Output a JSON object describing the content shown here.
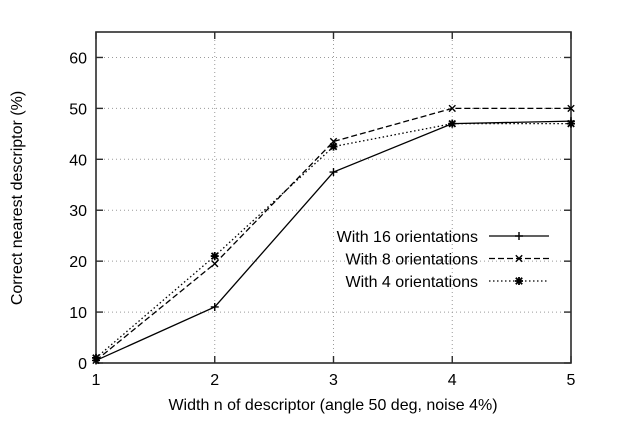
{
  "chart_data": {
    "type": "line",
    "title": "",
    "xlabel": "Width n of descriptor (angle 50 deg, noise 4%)",
    "ylabel": "Correct nearest descriptor (%)",
    "x": [
      1,
      2,
      3,
      4,
      5
    ],
    "xlim": [
      1,
      5
    ],
    "ylim": [
      0,
      65
    ],
    "xticks": [
      1,
      2,
      3,
      4,
      5
    ],
    "yticks": [
      0,
      10,
      20,
      30,
      40,
      50,
      60
    ],
    "grid": true,
    "legend_position": "inside-right-middle",
    "series": [
      {
        "name": "With 16 orientations",
        "marker": "plus",
        "line_style": "solid",
        "color": "#000000",
        "values": [
          0.5,
          11,
          37.5,
          47,
          47.5
        ]
      },
      {
        "name": "With 8 orientations",
        "marker": "cross",
        "line_style": "dashed",
        "color": "#000000",
        "values": [
          0.5,
          19.5,
          43.5,
          50,
          50
        ]
      },
      {
        "name": "With 4 orientations",
        "marker": "asterisk",
        "line_style": "dotted",
        "color": "#000000",
        "values": [
          1,
          21,
          42.5,
          47,
          47
        ]
      }
    ],
    "colors": {
      "background": "#ffffff",
      "axis": "#2b2b2b",
      "grid": "#9a9a9a",
      "text": "#000000"
    }
  }
}
